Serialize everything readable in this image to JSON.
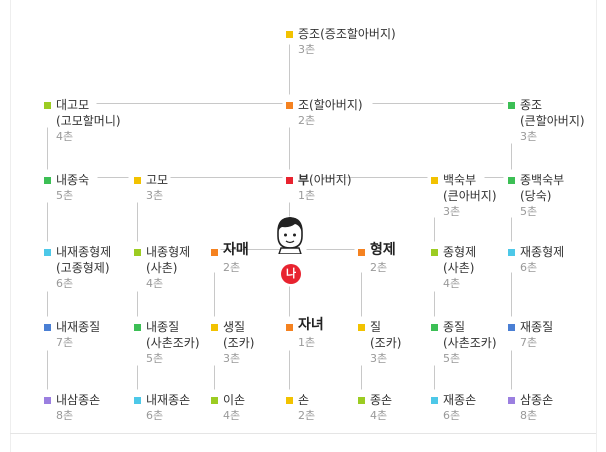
{
  "colors": {
    "yellow": "#f2c200",
    "orange": "#f58220",
    "red": "#e8232f",
    "lime": "#9ccc22",
    "green": "#3cbf55",
    "cyan": "#4dc8e8",
    "blue": "#4a7fd4",
    "purple": "#9b7fe0",
    "line": "#c8c8c8"
  },
  "me": {
    "label": "나",
    "icon": "person-face-icon"
  },
  "nodes": [
    {
      "id": "jeungjo",
      "name": "증조",
      "sub": "(증조할아버지)",
      "chon": "3촌",
      "color": "yellow"
    },
    {
      "id": "jo",
      "name": "조",
      "sub": "(할아버지)",
      "chon": "2촌",
      "color": "orange"
    },
    {
      "id": "daegomo",
      "name": "대고모",
      "sub": "(고모할머니)",
      "chon": "4촌",
      "color": "lime",
      "multiline": true
    },
    {
      "id": "jongjo",
      "name": "종조",
      "sub": "(큰할아버지)",
      "chon": "3촌",
      "color": "green",
      "multiline": true
    },
    {
      "id": "naejongsuk",
      "name": "내종숙",
      "chon": "5촌",
      "color": "green"
    },
    {
      "id": "gomo",
      "name": "고모",
      "chon": "3촌",
      "color": "yellow"
    },
    {
      "id": "bu",
      "name": "부",
      "sub": "(아버지)",
      "chon": "1촌",
      "color": "red",
      "bold": true
    },
    {
      "id": "baeksukbu",
      "name": "백숙부",
      "sub": "(큰아버지)",
      "chon": "3촌",
      "color": "yellow",
      "multiline": true
    },
    {
      "id": "jongbaeksukbu",
      "name": "종백숙부",
      "sub": "(당숙)",
      "chon": "5촌",
      "color": "green",
      "multiline": true
    },
    {
      "id": "naejaejonghyeongje",
      "name": "내재종형제",
      "sub": "(고종형제)",
      "chon": "6촌",
      "color": "cyan",
      "multiline": true
    },
    {
      "id": "naejonghyeongje",
      "name": "내종형제",
      "sub": "(사촌)",
      "chon": "4촌",
      "color": "lime",
      "multiline": true
    },
    {
      "id": "jamae",
      "name": "자매",
      "chon": "2촌",
      "color": "orange",
      "big": true
    },
    {
      "id": "hyeongje",
      "name": "형제",
      "chon": "2촌",
      "color": "orange",
      "big": true
    },
    {
      "id": "jonghyeongje",
      "name": "종형제",
      "sub": "(사촌)",
      "chon": "4촌",
      "color": "lime",
      "multiline": true
    },
    {
      "id": "jaejonghyeongje",
      "name": "재종형제",
      "chon": "6촌",
      "color": "cyan"
    },
    {
      "id": "naejaejongjil",
      "name": "내재종질",
      "chon": "7촌",
      "color": "blue"
    },
    {
      "id": "naejongjil",
      "name": "내종질",
      "sub": "(사촌조카)",
      "chon": "5촌",
      "color": "green",
      "multiline": true
    },
    {
      "id": "saengjil",
      "name": "생질",
      "sub": "(조카)",
      "chon": "3촌",
      "color": "yellow",
      "multiline": true
    },
    {
      "id": "janyeo",
      "name": "자녀",
      "chon": "1촌",
      "color": "orange",
      "big": true
    },
    {
      "id": "jil",
      "name": "질",
      "sub": "(조카)",
      "chon": "3촌",
      "color": "yellow",
      "multiline": true
    },
    {
      "id": "jongjil",
      "name": "종질",
      "sub": "(사촌조카)",
      "chon": "5촌",
      "color": "green",
      "multiline": true
    },
    {
      "id": "jaejongjil",
      "name": "재종질",
      "chon": "7촌",
      "color": "blue"
    },
    {
      "id": "naesamjongson",
      "name": "내삼종손",
      "chon": "8촌",
      "color": "purple"
    },
    {
      "id": "naejaejongson",
      "name": "내재종손",
      "chon": "6촌",
      "color": "cyan"
    },
    {
      "id": "ison",
      "name": "이손",
      "chon": "4촌",
      "color": "lime"
    },
    {
      "id": "son",
      "name": "손",
      "chon": "2촌",
      "color": "yellow"
    },
    {
      "id": "jongson",
      "name": "종손",
      "chon": "4촌",
      "color": "lime"
    },
    {
      "id": "jaejongson",
      "name": "재종손",
      "chon": "6촌",
      "color": "cyan"
    },
    {
      "id": "samjongson",
      "name": "삼종손",
      "chon": "8촌",
      "color": "purple"
    }
  ]
}
